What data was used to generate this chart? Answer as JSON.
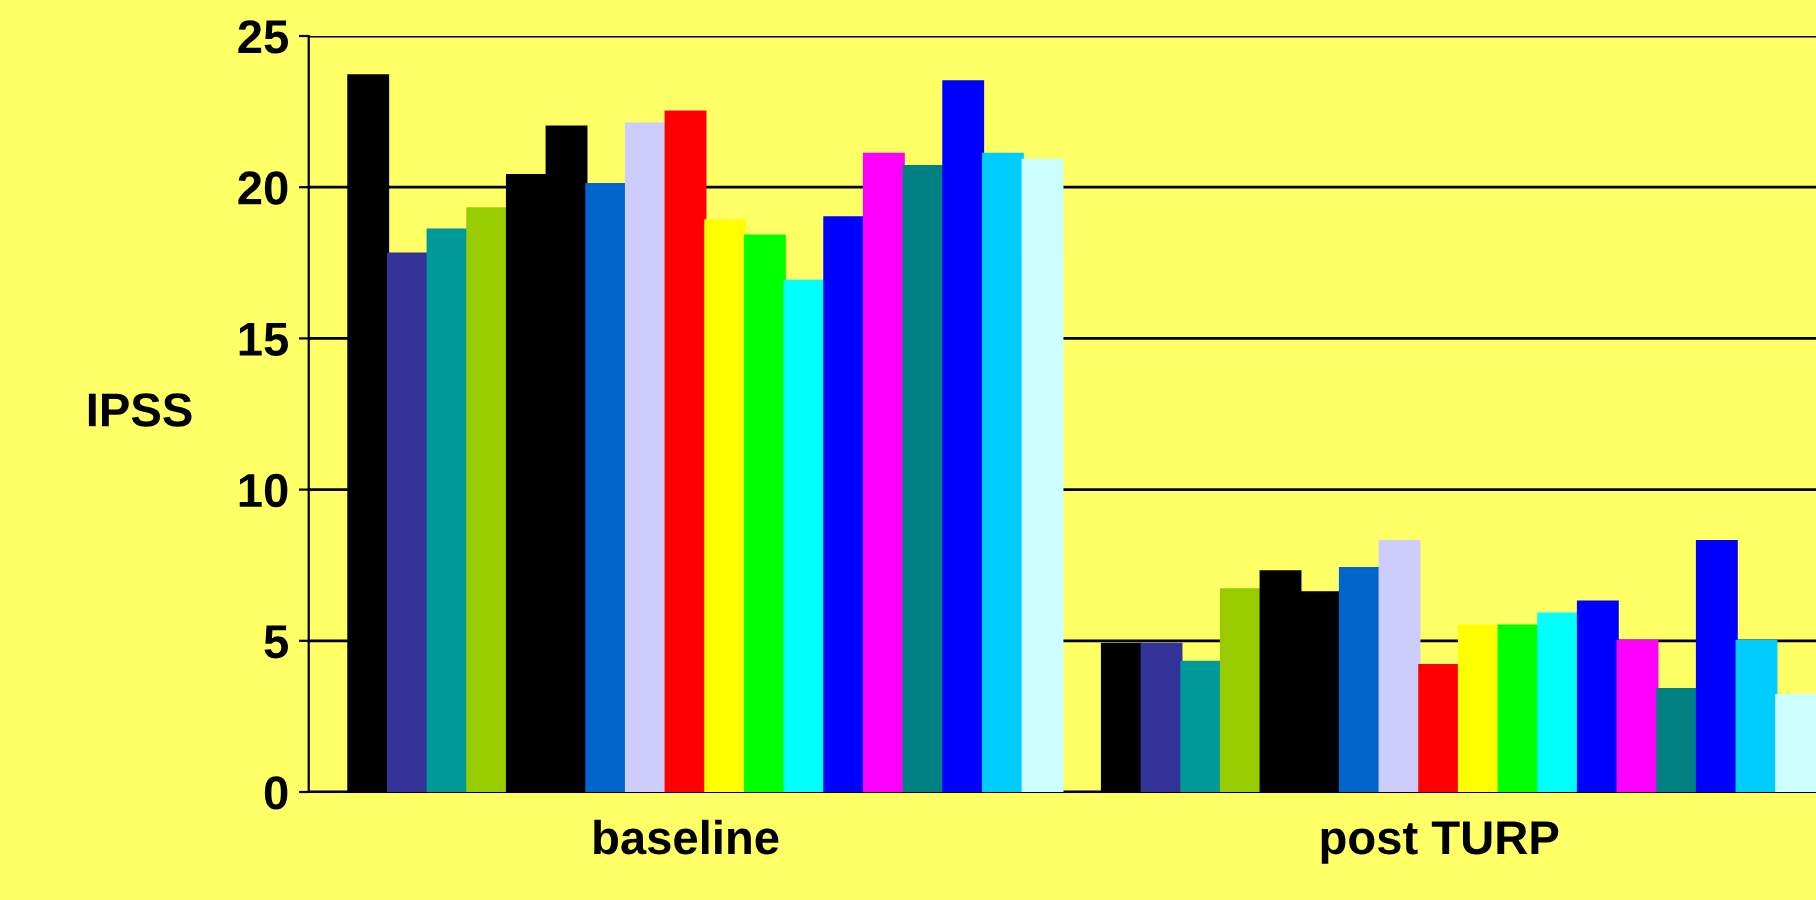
{
  "chart_data": {
    "type": "bar",
    "ylabel": "IPSS",
    "categories": [
      "baseline",
      "post TURP"
    ],
    "ylim": [
      0,
      25
    ],
    "yticks": [
      0,
      5,
      10,
      15,
      20,
      25
    ],
    "grid": "y",
    "series": [
      {
        "color": "#000000",
        "values": [
          null,
          0
        ]
      },
      {
        "color": "#000000",
        "values": [
          23.7,
          4.9
        ]
      },
      {
        "color": "#333399",
        "values": [
          17.8,
          4.9
        ]
      },
      {
        "color": "#009999",
        "values": [
          18.6,
          4.3
        ]
      },
      {
        "color": "#99cc00",
        "values": [
          19.3,
          6.7
        ]
      },
      {
        "color": "#000000",
        "values": [
          20.4,
          7.3
        ]
      },
      {
        "color": "#000000",
        "values": [
          22.0,
          6.6
        ]
      },
      {
        "color": "#0066cc",
        "values": [
          20.1,
          7.4
        ]
      },
      {
        "color": "#ccccff",
        "values": [
          22.1,
          8.3
        ]
      },
      {
        "color": "#ff0000",
        "values": [
          22.5,
          4.2
        ]
      },
      {
        "color": "#ffff00",
        "values": [
          18.9,
          5.5
        ]
      },
      {
        "color": "#00ff00",
        "values": [
          18.4,
          5.5
        ]
      },
      {
        "color": "#00ffff",
        "values": [
          16.9,
          5.9
        ]
      },
      {
        "color": "#0000ff",
        "values": [
          19.0,
          6.3
        ]
      },
      {
        "color": "#ff00ff",
        "values": [
          21.1,
          5.0
        ]
      },
      {
        "color": "#008080",
        "values": [
          20.7,
          3.4
        ]
      },
      {
        "color": "#0000ff",
        "values": [
          23.5,
          8.3
        ]
      },
      {
        "color": "#00ccff",
        "values": [
          21.1,
          5.0
        ]
      },
      {
        "color": "#ccffff",
        "values": [
          20.9,
          3.2
        ]
      }
    ]
  }
}
